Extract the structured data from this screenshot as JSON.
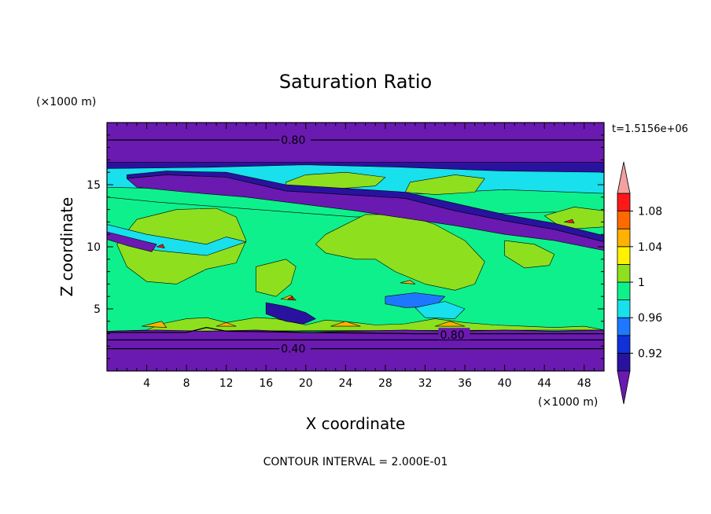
{
  "chart_data": {
    "type": "heatmap",
    "title": "Saturation Ratio",
    "xlabel": "X coordinate",
    "ylabel": "Z coordinate",
    "x_unit": "(×1000 m)",
    "y_unit": "(×1000 m)",
    "xlim": [
      0,
      50
    ],
    "ylim": [
      0,
      20
    ],
    "x_ticks": [
      4,
      8,
      12,
      16,
      20,
      24,
      28,
      32,
      36,
      40,
      44,
      48
    ],
    "x_tick_labels": [
      "4",
      "8",
      "12",
      "16",
      "20",
      "24",
      "28",
      "32",
      "36",
      "40",
      "44",
      "48"
    ],
    "y_ticks": [
      5,
      10,
      15
    ],
    "y_tick_labels": [
      "5",
      "10",
      "15"
    ],
    "time_label": "t=1.5156e+06",
    "footer": "CONTOUR INTERVAL = 2.000E-01",
    "contour_labels": [
      {
        "text": "0.80",
        "x": 17.5,
        "y": 18.6
      },
      {
        "text": "0.80",
        "x": 33.5,
        "y": 2.9
      },
      {
        "text": "0.40",
        "x": 17.5,
        "y": 1.8
      }
    ],
    "colorbar": {
      "levels": [
        0.9,
        0.92,
        0.94,
        0.96,
        0.98,
        1.0,
        1.02,
        1.04,
        1.06,
        1.08,
        1.1
      ],
      "colors": [
        "#6a1ab0",
        "#2a12a0",
        "#1030d8",
        "#1e78ff",
        "#18e0ec",
        "#0ef08c",
        "#8ee01e",
        "#fff200",
        "#ffb200",
        "#ff6a00",
        "#ff1818",
        "#f2a0a0"
      ],
      "labels": [
        {
          "value": 0.92,
          "text": "0.92"
        },
        {
          "value": 0.96,
          "text": "0.96"
        },
        {
          "value": 1.0,
          "text": "1"
        },
        {
          "value": 1.04,
          "text": "1.04"
        },
        {
          "value": 1.08,
          "text": "1.08"
        }
      ]
    },
    "bands": [
      {
        "level": "purple",
        "polygon": [
          [
            0,
            20
          ],
          [
            50,
            20
          ],
          [
            50,
            16.6
          ],
          [
            0,
            16.6
          ]
        ]
      },
      {
        "level": "darkblue",
        "polygon": [
          [
            0,
            16.8
          ],
          [
            50,
            16.8
          ],
          [
            50,
            15.6
          ],
          [
            40,
            15.8
          ],
          [
            30,
            16.2
          ],
          [
            20,
            16.3
          ],
          [
            10,
            16.0
          ],
          [
            0,
            16.2
          ]
        ]
      },
      {
        "level": "cyan",
        "polygon": [
          [
            0,
            16.3
          ],
          [
            10,
            16.4
          ],
          [
            20,
            16.6
          ],
          [
            30,
            16.4
          ],
          [
            40,
            16.1
          ],
          [
            50,
            16.0
          ],
          [
            50,
            14.3
          ],
          [
            40,
            14.6
          ],
          [
            30,
            14.2
          ],
          [
            20,
            14.0
          ],
          [
            10,
            14.6
          ],
          [
            0,
            14.8
          ]
        ]
      },
      {
        "level": "green",
        "polygon": [
          [
            0,
            14.0
          ],
          [
            5,
            13.6
          ],
          [
            15,
            13.0
          ],
          [
            25,
            12.4
          ],
          [
            35,
            12.6
          ],
          [
            45,
            12.8
          ],
          [
            50,
            12.4
          ],
          [
            50,
            3.2
          ],
          [
            0,
            3.2
          ]
        ]
      },
      {
        "level": "lightgreen",
        "polygon": [
          [
            3,
            12.2
          ],
          [
            7,
            13.0
          ],
          [
            11,
            13.1
          ],
          [
            13,
            12.4
          ],
          [
            14,
            10.5
          ],
          [
            13,
            8.7
          ],
          [
            10,
            8.2
          ],
          [
            7,
            7.0
          ],
          [
            4,
            7.2
          ],
          [
            2,
            8.4
          ],
          [
            1,
            10.2
          ]
        ]
      },
      {
        "level": "lightgreen",
        "polygon": [
          [
            22,
            11.0
          ],
          [
            26,
            12.6
          ],
          [
            30,
            12.6
          ],
          [
            33,
            11.8
          ],
          [
            36,
            10.5
          ],
          [
            38,
            8.8
          ],
          [
            37,
            7.0
          ],
          [
            35,
            6.5
          ],
          [
            32,
            7.0
          ],
          [
            29,
            8.0
          ],
          [
            27,
            9.0
          ],
          [
            25,
            9.0
          ],
          [
            22,
            9.5
          ],
          [
            21,
            10.2
          ]
        ]
      },
      {
        "level": "lightgreen",
        "polygon": [
          [
            15,
            8.4
          ],
          [
            18,
            9.0
          ],
          [
            19,
            8.4
          ],
          [
            18.5,
            7.0
          ],
          [
            17,
            6.0
          ],
          [
            15,
            6.4
          ]
        ]
      },
      {
        "level": "lightgreen",
        "polygon": [
          [
            40,
            10.5
          ],
          [
            43,
            10.2
          ],
          [
            45,
            9.4
          ],
          [
            44.5,
            8.5
          ],
          [
            42,
            8.3
          ],
          [
            40,
            9.3
          ]
        ]
      },
      {
        "level": "lightgreen",
        "polygon": [
          [
            44,
            12.5
          ],
          [
            47,
            13.2
          ],
          [
            50,
            12.9
          ],
          [
            50,
            11.6
          ],
          [
            46,
            11.4
          ]
        ]
      },
      {
        "level": "lightgreen",
        "polygon": [
          [
            30.5,
            15.2
          ],
          [
            35,
            15.8
          ],
          [
            38,
            15.5
          ],
          [
            37,
            14.4
          ],
          [
            33,
            14.2
          ],
          [
            30,
            14.4
          ]
        ]
      },
      {
        "level": "lightgreen",
        "polygon": [
          [
            18,
            15.2
          ],
          [
            20,
            15.8
          ],
          [
            24,
            16.0
          ],
          [
            28,
            15.6
          ],
          [
            27,
            14.9
          ],
          [
            22,
            14.6
          ],
          [
            18,
            14.8
          ]
        ]
      },
      {
        "level": "lightgreen",
        "polygon": [
          [
            4,
            3.3
          ],
          [
            5.5,
            3.8
          ],
          [
            8,
            4.2
          ],
          [
            10,
            4.3
          ],
          [
            12,
            3.9
          ],
          [
            15,
            4.3
          ],
          [
            17,
            4.2
          ],
          [
            20,
            3.7
          ],
          [
            22,
            4.1
          ],
          [
            25,
            3.9
          ],
          [
            27,
            3.7
          ],
          [
            30,
            3.8
          ],
          [
            33,
            4.2
          ],
          [
            36,
            3.9
          ],
          [
            39,
            3.7
          ],
          [
            42,
            3.6
          ],
          [
            45,
            3.5
          ],
          [
            48,
            3.6
          ],
          [
            50,
            3.3
          ],
          [
            0,
            3.2
          ]
        ]
      },
      {
        "level": "purple",
        "polygon": [
          [
            2,
            15.5
          ],
          [
            6,
            15.8
          ],
          [
            12,
            15.6
          ],
          [
            18,
            14.5
          ],
          [
            24,
            14.2
          ],
          [
            30,
            13.9
          ],
          [
            35,
            12.9
          ],
          [
            40,
            12.1
          ],
          [
            45,
            11.4
          ],
          [
            50,
            10.4
          ],
          [
            50,
            9.7
          ],
          [
            45,
            10.5
          ],
          [
            40,
            11.0
          ],
          [
            35,
            11.7
          ],
          [
            30,
            12.3
          ],
          [
            25,
            12.9
          ],
          [
            20,
            13.4
          ],
          [
            14,
            14.0
          ],
          [
            8,
            14.4
          ],
          [
            3,
            14.8
          ]
        ]
      },
      {
        "level": "darkblue",
        "polygon": [
          [
            2,
            15.8
          ],
          [
            6,
            16.1
          ],
          [
            12,
            16.0
          ],
          [
            18,
            15.0
          ],
          [
            24,
            14.7
          ],
          [
            30,
            14.4
          ],
          [
            35,
            13.5
          ],
          [
            40,
            12.6
          ],
          [
            45,
            11.9
          ],
          [
            50,
            10.9
          ],
          [
            50,
            10.4
          ],
          [
            45,
            11.4
          ],
          [
            40,
            12.1
          ],
          [
            35,
            12.9
          ],
          [
            30,
            13.9
          ],
          [
            24,
            14.2
          ],
          [
            18,
            14.5
          ],
          [
            12,
            15.6
          ],
          [
            6,
            15.8
          ],
          [
            2,
            15.5
          ]
        ]
      },
      {
        "level": "cyan",
        "polygon": [
          [
            0,
            11.8
          ],
          [
            4,
            11.0
          ],
          [
            10,
            10.2
          ],
          [
            12,
            10.8
          ],
          [
            14,
            10.4
          ],
          [
            10,
            9.3
          ],
          [
            5,
            9.7
          ],
          [
            0,
            10.6
          ]
        ]
      },
      {
        "level": "purple",
        "polygon": [
          [
            0,
            11.2
          ],
          [
            3,
            10.6
          ],
          [
            5,
            10.2
          ],
          [
            4.5,
            9.6
          ],
          [
            2,
            10.1
          ],
          [
            0,
            10.6
          ]
        ]
      },
      {
        "level": "darkblue",
        "polygon": [
          [
            16,
            5.5
          ],
          [
            18,
            5.2
          ],
          [
            20,
            4.7
          ],
          [
            21,
            4.2
          ],
          [
            19.8,
            3.8
          ],
          [
            18,
            4.0
          ],
          [
            16,
            4.6
          ]
        ]
      },
      {
        "level": "blue",
        "polygon": [
          [
            28,
            6.0
          ],
          [
            31,
            6.3
          ],
          [
            34,
            6.0
          ],
          [
            33,
            5.2
          ],
          [
            30,
            5.1
          ],
          [
            28,
            5.4
          ]
        ]
      },
      {
        "level": "cyan",
        "polygon": [
          [
            31,
            5.1
          ],
          [
            34,
            5.6
          ],
          [
            36,
            5.0
          ],
          [
            35,
            4.2
          ],
          [
            32,
            4.3
          ]
        ]
      },
      {
        "level": "orange",
        "polygon": [
          [
            3.5,
            3.6
          ],
          [
            5.5,
            4.0
          ],
          [
            6,
            3.5
          ]
        ]
      },
      {
        "level": "orange",
        "polygon": [
          [
            11,
            3.6
          ],
          [
            12,
            3.9
          ],
          [
            13,
            3.6
          ]
        ]
      },
      {
        "level": "orange",
        "polygon": [
          [
            22.5,
            3.6
          ],
          [
            24,
            4.0
          ],
          [
            25.5,
            3.6
          ]
        ]
      },
      {
        "level": "orange",
        "polygon": [
          [
            33,
            3.6
          ],
          [
            34.5,
            4.0
          ],
          [
            36,
            3.6
          ]
        ]
      },
      {
        "level": "orange",
        "polygon": [
          [
            17.5,
            5.8
          ],
          [
            18.5,
            6.1
          ],
          [
            19,
            5.7
          ]
        ]
      },
      {
        "level": "orange",
        "polygon": [
          [
            29.5,
            7.1
          ],
          [
            30.5,
            7.3
          ],
          [
            31,
            7.0
          ]
        ]
      },
      {
        "level": "red",
        "polygon": [
          [
            18.2,
            5.8
          ],
          [
            18.6,
            6.0
          ],
          [
            18.8,
            5.7
          ]
        ]
      },
      {
        "level": "red",
        "polygon": [
          [
            5,
            10.0
          ],
          [
            5.6,
            10.2
          ],
          [
            5.8,
            9.9
          ]
        ]
      },
      {
        "level": "red",
        "polygon": [
          [
            46,
            12.0
          ],
          [
            46.8,
            12.2
          ],
          [
            47,
            11.9
          ]
        ]
      },
      {
        "level": "purple",
        "polygon": [
          [
            0,
            3.2
          ],
          [
            5,
            3.3
          ],
          [
            10,
            3.2
          ],
          [
            15,
            3.3
          ],
          [
            20,
            3.1
          ],
          [
            25,
            3.2
          ],
          [
            30,
            3.3
          ],
          [
            35,
            3.2
          ],
          [
            40,
            3.3
          ],
          [
            45,
            3.2
          ],
          [
            50,
            3.3
          ],
          [
            50,
            0
          ],
          [
            0,
            0
          ]
        ]
      }
    ],
    "contours": [
      {
        "label": "0.80",
        "points": [
          [
            0,
            18.6
          ],
          [
            16,
            18.6
          ],
          [
            19.5,
            18.6
          ],
          [
            50,
            18.6
          ]
        ]
      },
      {
        "label": "0.80",
        "points": [
          [
            0,
            3.1
          ],
          [
            8,
            3.1
          ],
          [
            10,
            3.5
          ],
          [
            12,
            3.2
          ],
          [
            20,
            3.1
          ],
          [
            31,
            3.0
          ],
          [
            35,
            3.0
          ],
          [
            50,
            3.0
          ]
        ]
      },
      {
        "label": "",
        "points": [
          [
            0,
            2.5
          ],
          [
            50,
            2.5
          ]
        ]
      },
      {
        "label": "0.40",
        "points": [
          [
            0,
            1.8
          ],
          [
            50,
            1.8
          ]
        ]
      }
    ]
  }
}
